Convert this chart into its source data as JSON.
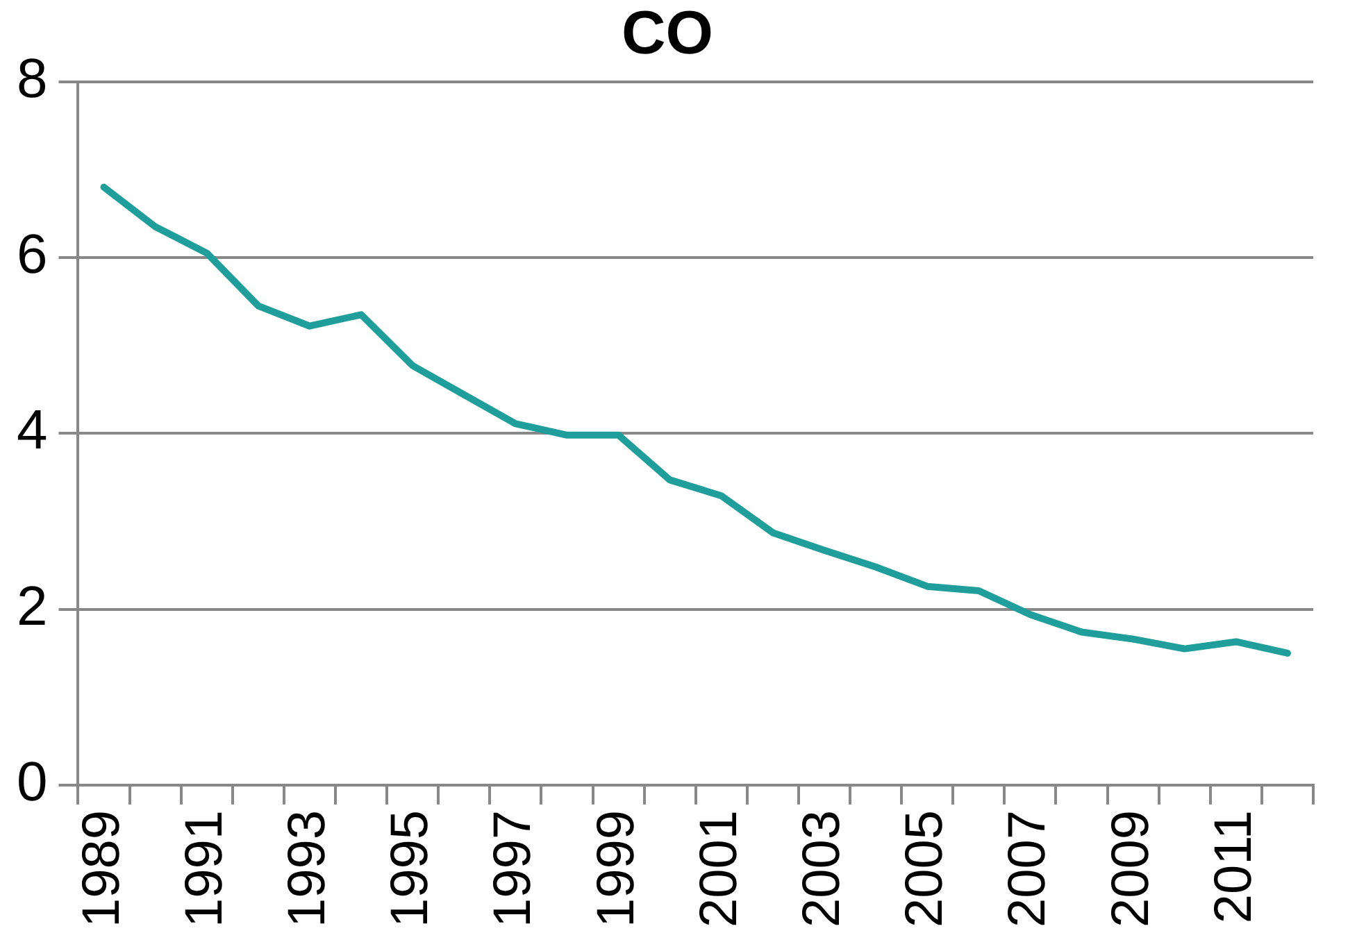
{
  "chart_data": {
    "type": "line",
    "title": "CO",
    "categories": [
      "1989",
      null,
      "1991",
      null,
      "1993",
      null,
      "1995",
      null,
      "1997",
      null,
      "1999",
      null,
      "2001",
      null,
      "2003",
      null,
      "2005",
      null,
      "2007",
      null,
      "2009",
      null,
      "2011",
      null
    ],
    "series": [
      {
        "color": "#1f9e9b",
        "values": [
          6.8,
          6.35,
          6.05,
          5.45,
          5.22,
          5.35,
          4.77,
          4.44,
          4.11,
          3.98,
          3.98,
          3.47,
          3.29,
          2.87,
          2.67,
          2.48,
          2.26,
          2.21,
          1.94,
          1.74,
          1.66,
          1.55,
          1.63,
          1.5
        ]
      }
    ],
    "ylim": [
      0,
      8
    ],
    "yticks": [
      0,
      2,
      4,
      6,
      8
    ],
    "grid": "y",
    "legend": false,
    "marker": "none",
    "line_style": "solid"
  }
}
